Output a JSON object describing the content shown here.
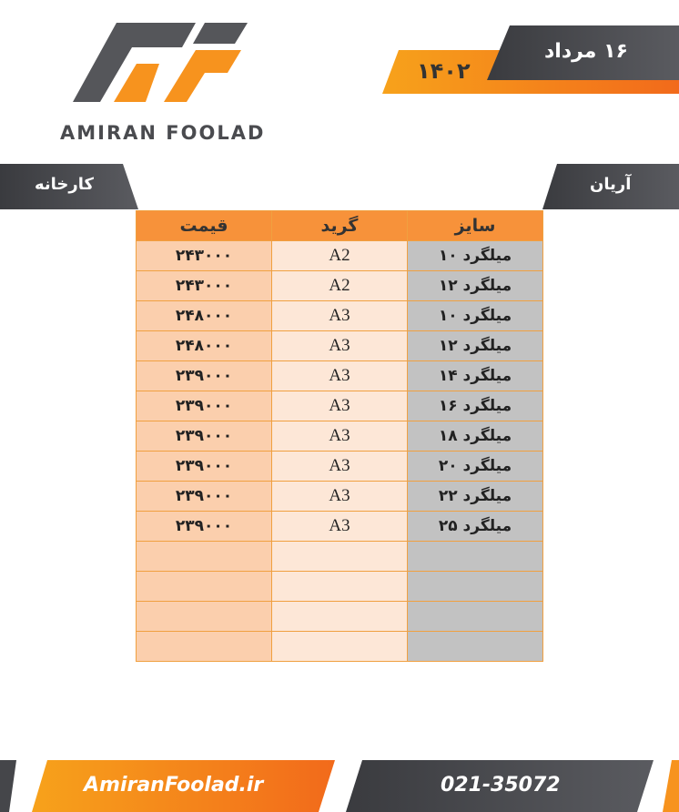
{
  "header": {
    "logo_text": "AMIRAN FOOLAD",
    "date": "۱۶ مرداد",
    "year": "۱۴۰۲"
  },
  "labels": {
    "left": "کارخانه",
    "right": "آریان"
  },
  "table": {
    "columns": [
      "سایز",
      "گرید",
      "قیمت"
    ],
    "rows": [
      [
        "میلگرد ۱۰",
        "A2",
        "۲۴۳۰۰۰"
      ],
      [
        "میلگرد ۱۲",
        "A2",
        "۲۴۳۰۰۰"
      ],
      [
        "میلگرد ۱۰",
        "A3",
        "۲۴۸۰۰۰"
      ],
      [
        "میلگرد ۱۲",
        "A3",
        "۲۴۸۰۰۰"
      ],
      [
        "میلگرد ۱۴",
        "A3",
        "۲۳۹۰۰۰"
      ],
      [
        "میلگرد ۱۶",
        "A3",
        "۲۳۹۰۰۰"
      ],
      [
        "میلگرد ۱۸",
        "A3",
        "۲۳۹۰۰۰"
      ],
      [
        "میلگرد ۲۰",
        "A3",
        "۲۳۹۰۰۰"
      ],
      [
        "میلگرد ۲۲",
        "A3",
        "۲۳۹۰۰۰"
      ],
      [
        "میلگرد ۲۵",
        "A3",
        "۲۳۹۰۰۰"
      ]
    ]
  },
  "footer": {
    "website": "AmiranFoolad.ir",
    "phone": "021-35072"
  }
}
